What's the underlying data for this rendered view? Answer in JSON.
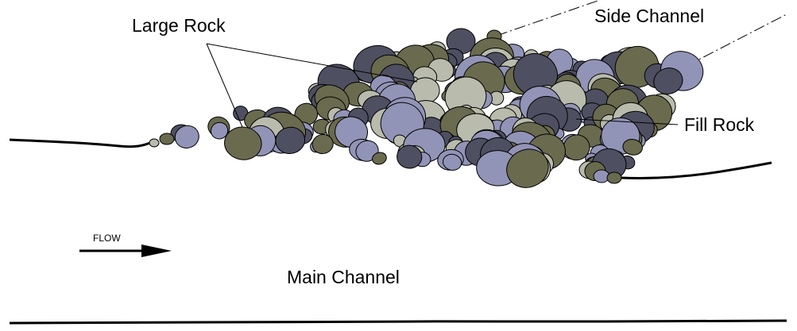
{
  "labels": {
    "large_rock": "Large Rock",
    "side_channel": "Side Channel",
    "fill_rock": "Fill Rock",
    "flow": "FLOW",
    "main_channel": "Main Channel"
  },
  "colors": {
    "olive": "#6a6a4e",
    "gray": "#b9bbac",
    "slate": "#4f4f62",
    "lavender": "#9194b6",
    "outline": "#000000"
  }
}
